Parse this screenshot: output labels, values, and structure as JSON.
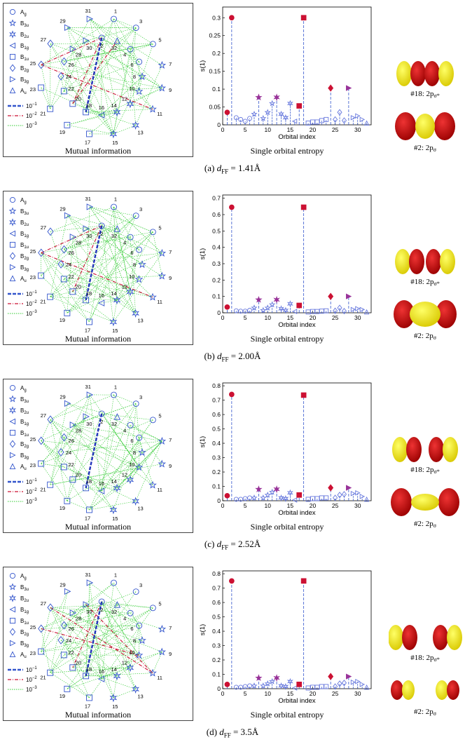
{
  "orbital_numbers": [
    "1",
    "3",
    "5",
    "7",
    "9",
    "11",
    "13",
    "15",
    "17",
    "19",
    "21",
    "23",
    "25",
    "27",
    "29",
    "31",
    "32",
    "4",
    "6",
    "8",
    "10",
    "12",
    "14",
    "16",
    "18",
    "20",
    "22",
    "24",
    "26",
    "28",
    "30",
    "2"
  ],
  "legend": {
    "symmetry_labels": [
      "A",
      "B",
      "B",
      "B",
      "B",
      "B",
      "B",
      "A"
    ],
    "symmetry_subs": [
      "g",
      "3u",
      "2u",
      "1g",
      "1u",
      "2g",
      "3g",
      "u"
    ],
    "line_base": "10",
    "line_exps": [
      "−1",
      "−2",
      "−3"
    ]
  },
  "subcaptions": {
    "mutual": "Mutual information",
    "entropy": "Single orbital entropy"
  },
  "orbital_labels": {
    "sigma_star": "#18: 2p",
    "sigma_star_sub": "σ*",
    "sigma": "#2: 2p",
    "sigma_sub": "σ"
  },
  "rows": [
    {
      "tag": "(a)",
      "d_label": "d",
      "d_sub": "FF",
      "d_value": " = 1.41Å"
    },
    {
      "tag": "(b)",
      "d_label": "d",
      "d_sub": "FF",
      "d_value": " = 2.00Å"
    },
    {
      "tag": "(c)",
      "d_label": "d",
      "d_sub": "FF",
      "d_value": " = 2.52Å"
    },
    {
      "tag": "(d)",
      "d_label": "d",
      "d_sub": "FF",
      "d_value": " = 3.5Å"
    }
  ],
  "chart_data": [
    {
      "type": "scatter",
      "xlabel": "Orbital index",
      "ylabel": "s(1)",
      "xlim": [
        0,
        33
      ],
      "ylim": [
        0,
        0.33
      ],
      "xticks": [
        0,
        5,
        10,
        15,
        20,
        25,
        30
      ],
      "yticks": [
        0,
        0.05,
        0.1,
        0.15,
        0.2,
        0.25,
        0.3
      ],
      "ytick_labels": [
        "0",
        "0.05",
        "0.1",
        "0.15",
        "0.2",
        "0.25",
        "0.3"
      ],
      "highlight_points": [
        {
          "x": 1,
          "y": 0.035
        },
        {
          "x": 2,
          "y": 0.3
        },
        {
          "x": 8,
          "y": 0.077
        },
        {
          "x": 12,
          "y": 0.077
        },
        {
          "x": 17,
          "y": 0.053
        },
        {
          "x": 18,
          "y": 0.3
        },
        {
          "x": 24,
          "y": 0.103
        },
        {
          "x": 28,
          "y": 0.103
        }
      ],
      "other_points": [
        {
          "x": 3,
          "y": 0.02
        },
        {
          "x": 4,
          "y": 0.015
        },
        {
          "x": 5,
          "y": 0.01
        },
        {
          "x": 6,
          "y": 0.018
        },
        {
          "x": 7,
          "y": 0.03
        },
        {
          "x": 9,
          "y": 0.018
        },
        {
          "x": 10,
          "y": 0.035
        },
        {
          "x": 11,
          "y": 0.06
        },
        {
          "x": 13,
          "y": 0.03
        },
        {
          "x": 14,
          "y": 0.02
        },
        {
          "x": 15,
          "y": 0.06
        },
        {
          "x": 16,
          "y": 0.01
        },
        {
          "x": 19,
          "y": 0.005
        },
        {
          "x": 20,
          "y": 0.008
        },
        {
          "x": 21,
          "y": 0.008
        },
        {
          "x": 22,
          "y": 0.012
        },
        {
          "x": 23,
          "y": 0.015
        },
        {
          "x": 25,
          "y": 0.015
        },
        {
          "x": 26,
          "y": 0.035
        },
        {
          "x": 27,
          "y": 0.012
        },
        {
          "x": 29,
          "y": 0.02
        },
        {
          "x": 30,
          "y": 0.025
        },
        {
          "x": 31,
          "y": 0.015
        },
        {
          "x": 32,
          "y": 0.005
        }
      ]
    },
    {
      "type": "scatter",
      "xlabel": "Orbital index",
      "ylabel": "s(1)",
      "xlim": [
        0,
        33
      ],
      "ylim": [
        0,
        0.72
      ],
      "xticks": [
        0,
        5,
        10,
        15,
        20,
        25,
        30
      ],
      "yticks": [
        0,
        0.1,
        0.2,
        0.3,
        0.4,
        0.5,
        0.6,
        0.7
      ],
      "ytick_labels": [
        "0",
        "0.1",
        "0.2",
        "0.3",
        "0.4",
        "0.5",
        "0.6",
        "0.7"
      ],
      "highlight_points": [
        {
          "x": 1,
          "y": 0.035
        },
        {
          "x": 2,
          "y": 0.645
        },
        {
          "x": 8,
          "y": 0.08
        },
        {
          "x": 12,
          "y": 0.08
        },
        {
          "x": 17,
          "y": 0.045
        },
        {
          "x": 18,
          "y": 0.645
        },
        {
          "x": 24,
          "y": 0.1
        },
        {
          "x": 28,
          "y": 0.1
        }
      ],
      "other_points": [
        {
          "x": 3,
          "y": 0.012
        },
        {
          "x": 4,
          "y": 0.01
        },
        {
          "x": 5,
          "y": 0.01
        },
        {
          "x": 6,
          "y": 0.015
        },
        {
          "x": 7,
          "y": 0.03
        },
        {
          "x": 9,
          "y": 0.015
        },
        {
          "x": 10,
          "y": 0.03
        },
        {
          "x": 11,
          "y": 0.05
        },
        {
          "x": 13,
          "y": 0.025
        },
        {
          "x": 14,
          "y": 0.015
        },
        {
          "x": 15,
          "y": 0.055
        },
        {
          "x": 16,
          "y": 0.008
        },
        {
          "x": 19,
          "y": 0.005
        },
        {
          "x": 20,
          "y": 0.008
        },
        {
          "x": 21,
          "y": 0.008
        },
        {
          "x": 22,
          "y": 0.01
        },
        {
          "x": 23,
          "y": 0.012
        },
        {
          "x": 25,
          "y": 0.012
        },
        {
          "x": 26,
          "y": 0.03
        },
        {
          "x": 27,
          "y": 0.01
        },
        {
          "x": 29,
          "y": 0.02
        },
        {
          "x": 30,
          "y": 0.025
        },
        {
          "x": 31,
          "y": 0.02
        },
        {
          "x": 32,
          "y": 0.005
        }
      ]
    },
    {
      "type": "scatter",
      "xlabel": "Orbital index",
      "ylabel": "s(1)",
      "xlim": [
        0,
        33
      ],
      "ylim": [
        0,
        0.82
      ],
      "xticks": [
        0,
        5,
        10,
        15,
        20,
        25,
        30
      ],
      "yticks": [
        0,
        0.1,
        0.2,
        0.3,
        0.4,
        0.5,
        0.6,
        0.7,
        0.8
      ],
      "ytick_labels": [
        "0",
        "0.1",
        "0.2",
        "0.3",
        "0.4",
        "0.5",
        "0.6",
        "0.7",
        "0.8"
      ],
      "highlight_points": [
        {
          "x": 1,
          "y": 0.035
        },
        {
          "x": 2,
          "y": 0.74
        },
        {
          "x": 8,
          "y": 0.08
        },
        {
          "x": 12,
          "y": 0.08
        },
        {
          "x": 17,
          "y": 0.04
        },
        {
          "x": 18,
          "y": 0.735
        },
        {
          "x": 24,
          "y": 0.09
        },
        {
          "x": 28,
          "y": 0.09
        }
      ],
      "other_points": [
        {
          "x": 3,
          "y": 0.01
        },
        {
          "x": 4,
          "y": 0.01
        },
        {
          "x": 5,
          "y": 0.015
        },
        {
          "x": 6,
          "y": 0.02
        },
        {
          "x": 7,
          "y": 0.02
        },
        {
          "x": 9,
          "y": 0.02
        },
        {
          "x": 10,
          "y": 0.04
        },
        {
          "x": 11,
          "y": 0.06
        },
        {
          "x": 13,
          "y": 0.02
        },
        {
          "x": 14,
          "y": 0.015
        },
        {
          "x": 15,
          "y": 0.055
        },
        {
          "x": 16,
          "y": 0.005
        },
        {
          "x": 19,
          "y": 0.01
        },
        {
          "x": 20,
          "y": 0.015
        },
        {
          "x": 21,
          "y": 0.015
        },
        {
          "x": 22,
          "y": 0.02
        },
        {
          "x": 23,
          "y": 0.02
        },
        {
          "x": 25,
          "y": 0.02
        },
        {
          "x": 26,
          "y": 0.04
        },
        {
          "x": 27,
          "y": 0.045
        },
        {
          "x": 29,
          "y": 0.05
        },
        {
          "x": 30,
          "y": 0.055
        },
        {
          "x": 31,
          "y": 0.03
        },
        {
          "x": 32,
          "y": 0.01
        }
      ]
    },
    {
      "type": "scatter",
      "xlabel": "Orbital index",
      "ylabel": "s(1)",
      "xlim": [
        0,
        33
      ],
      "ylim": [
        0,
        0.82
      ],
      "xticks": [
        0,
        5,
        10,
        15,
        20,
        25,
        30
      ],
      "yticks": [
        0,
        0.1,
        0.2,
        0.3,
        0.4,
        0.5,
        0.6,
        0.7,
        0.8
      ],
      "ytick_labels": [
        "0",
        "0.1",
        "0.2",
        "0.3",
        "0.4",
        "0.5",
        "0.6",
        "0.7",
        "0.8"
      ],
      "highlight_points": [
        {
          "x": 1,
          "y": 0.03
        },
        {
          "x": 2,
          "y": 0.75
        },
        {
          "x": 8,
          "y": 0.075
        },
        {
          "x": 12,
          "y": 0.075
        },
        {
          "x": 17,
          "y": 0.03
        },
        {
          "x": 18,
          "y": 0.75
        },
        {
          "x": 24,
          "y": 0.085
        },
        {
          "x": 28,
          "y": 0.085
        }
      ],
      "other_points": [
        {
          "x": 3,
          "y": 0.01
        },
        {
          "x": 4,
          "y": 0.01
        },
        {
          "x": 5,
          "y": 0.015
        },
        {
          "x": 6,
          "y": 0.02
        },
        {
          "x": 7,
          "y": 0.02
        },
        {
          "x": 9,
          "y": 0.02
        },
        {
          "x": 10,
          "y": 0.035
        },
        {
          "x": 11,
          "y": 0.05
        },
        {
          "x": 13,
          "y": 0.02
        },
        {
          "x": 14,
          "y": 0.015
        },
        {
          "x": 15,
          "y": 0.05
        },
        {
          "x": 16,
          "y": 0.005
        },
        {
          "x": 19,
          "y": 0.005
        },
        {
          "x": 20,
          "y": 0.01
        },
        {
          "x": 21,
          "y": 0.01
        },
        {
          "x": 22,
          "y": 0.015
        },
        {
          "x": 23,
          "y": 0.015
        },
        {
          "x": 25,
          "y": 0.015
        },
        {
          "x": 26,
          "y": 0.035
        },
        {
          "x": 27,
          "y": 0.04
        },
        {
          "x": 29,
          "y": 0.045
        },
        {
          "x": 30,
          "y": 0.05
        },
        {
          "x": 31,
          "y": 0.03
        },
        {
          "x": 32,
          "y": 0.01
        }
      ]
    }
  ]
}
